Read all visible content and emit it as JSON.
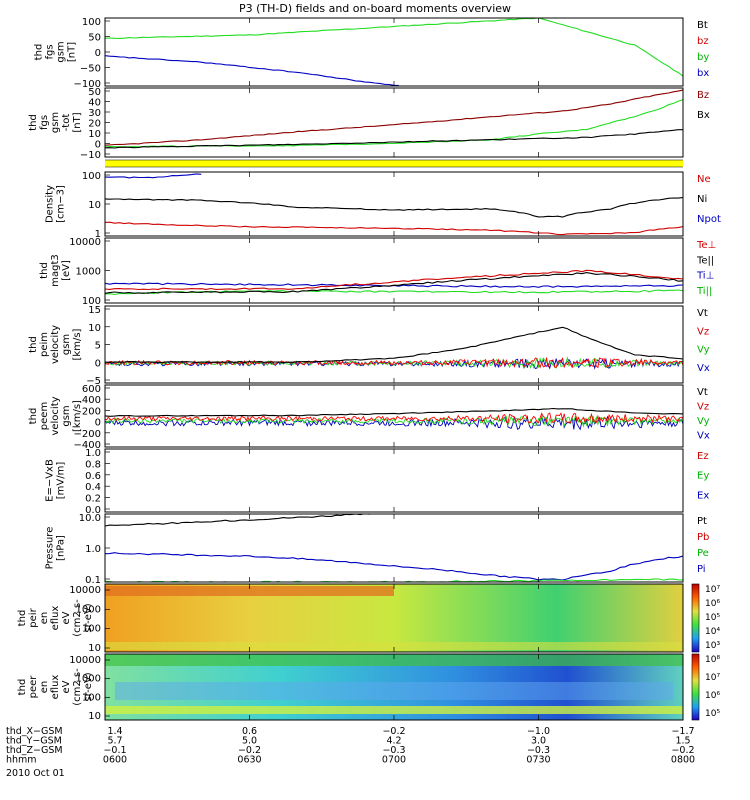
{
  "title": "P3 (TH-D) fields and on-board moments overview",
  "chart_data": [
    {
      "type": "line",
      "ylabel": [
        "thd",
        "fgs",
        "gsm",
        "[nT]"
      ],
      "ylim": [
        -100,
        100
      ],
      "y_ticks": [
        "100",
        "50",
        "0",
        "−50",
        "−100"
      ],
      "legend": [
        {
          "text": "Bt",
          "color": "#000000"
        },
        {
          "text": "bz",
          "color": "#d00000"
        },
        {
          "text": "by",
          "color": "#00b400"
        },
        {
          "text": "bx",
          "color": "#0000c0"
        }
      ],
      "series": [
        {
          "name": "by",
          "color": "#22dd22",
          "t": [
            0,
            30,
            60,
            90,
            110,
            120
          ],
          "values": [
            40,
            50,
            75,
            100,
            20,
            -70
          ]
        },
        {
          "name": "bx",
          "color": "#0000c0",
          "t": [
            0,
            20,
            40,
            55,
            62
          ],
          "values": [
            -12,
            -30,
            -60,
            -90,
            -100
          ]
        }
      ]
    },
    {
      "type": "line",
      "ylabel": [
        "thd",
        "fgs",
        "gsm",
        "-tot",
        "[nT]"
      ],
      "ylim": [
        -10,
        50
      ],
      "y_ticks": [
        "50",
        "40",
        "30",
        "20",
        "10",
        "0",
        "−10"
      ],
      "legend": [
        {
          "text": "Bz",
          "color": "#8b0000"
        },
        {
          "text": "Bx",
          "color": "#000000"
        }
      ],
      "series": [
        {
          "name": "Bz",
          "color": "#8b0000",
          "t": [
            0,
            20,
            40,
            60,
            80,
            95,
            105,
            112,
            120
          ],
          "values": [
            0,
            5,
            12,
            18,
            25,
            30,
            36,
            42,
            48
          ]
        },
        {
          "name": "green",
          "color": "#22dd22",
          "t": [
            0,
            40,
            60,
            80,
            90,
            100,
            105,
            110,
            115,
            120
          ],
          "values": [
            -1,
            0,
            2,
            5,
            10,
            14,
            20,
            25,
            32,
            40
          ]
        },
        {
          "name": "Bx",
          "color": "#000000",
          "t": [
            0,
            40,
            60,
            80,
            100,
            110,
            120
          ],
          "values": [
            -2,
            1,
            3,
            5,
            7,
            10,
            14
          ]
        }
      ]
    },
    {
      "type": "line",
      "ylabel": [
        "Density",
        "[cm−3]"
      ],
      "scale": "log",
      "ylim": [
        0.1,
        200
      ],
      "y_ticks": [
        "100",
        "10",
        "1"
      ],
      "legend": [
        {
          "text": "Ne",
          "color": "#d00000"
        },
        {
          "text": "Ni",
          "color": "#000000"
        },
        {
          "text": "Npot",
          "color": "#0000c0"
        }
      ],
      "series": [
        {
          "name": "Ni",
          "color": "#000000",
          "t": [
            0,
            20,
            40,
            60,
            80,
            90,
            95,
            105,
            120
          ],
          "values": [
            8,
            7,
            3,
            2.2,
            2.5,
            1,
            1,
            2.5,
            10
          ]
        },
        {
          "name": "Ne",
          "color": "#d00000",
          "t": [
            0,
            10,
            30,
            60,
            80,
            95,
            110,
            120
          ],
          "values": [
            0.5,
            0.4,
            0.3,
            0.25,
            0.2,
            0.12,
            0.15,
            0.3
          ]
        },
        {
          "name": "Npot",
          "color": "#0000c0",
          "t": [
            0,
            10,
            20
          ],
          "values": [
            110,
            100,
            160
          ]
        }
      ]
    },
    {
      "type": "line",
      "ylabel": [
        "thd",
        "magt3",
        "[eV]"
      ],
      "scale": "log",
      "ylim": [
        100,
        15000
      ],
      "y_ticks": [
        "10000",
        "1000",
        "100"
      ],
      "legend": [
        {
          "text": "Te⊥",
          "color": "#d00000"
        },
        {
          "text": "Te||",
          "color": "#000000"
        },
        {
          "text": "Ti⊥",
          "color": "#0000c0"
        },
        {
          "text": "Ti||",
          "color": "#00b400"
        }
      ],
      "series": [
        {
          "name": "Ti⊥",
          "color": "#0000c0",
          "t": [
            0,
            30,
            60,
            90,
            120
          ],
          "values": [
            450,
            420,
            380,
            350,
            380
          ]
        },
        {
          "name": "Ti||",
          "color": "#22dd22",
          "t": [
            0,
            30,
            60,
            90,
            120
          ],
          "values": [
            200,
            250,
            240,
            230,
            260
          ]
        },
        {
          "name": "Te⊥",
          "color": "#d00000",
          "t": [
            0,
            40,
            60,
            80,
            100,
            120
          ],
          "values": [
            300,
            300,
            500,
            800,
            1200,
            600
          ]
        },
        {
          "name": "Te||",
          "color": "#000000",
          "t": [
            0,
            40,
            60,
            80,
            100,
            120
          ],
          "values": [
            220,
            240,
            380,
            650,
            1000,
            550
          ]
        }
      ]
    },
    {
      "type": "line",
      "ylabel": [
        "thd",
        "peim",
        "velocity",
        "gsm",
        "[km/s]"
      ],
      "ylim": [
        -5,
        17
      ],
      "y_ticks": [
        "15",
        "10",
        "5",
        "0",
        "−5"
      ],
      "legend": [
        {
          "text": "Vt",
          "color": "#000000"
        },
        {
          "text": "Vz",
          "color": "#d00000"
        },
        {
          "text": "Vy",
          "color": "#00b400"
        },
        {
          "text": "Vx",
          "color": "#0000c0"
        }
      ],
      "series": [
        {
          "name": "Vx",
          "color": "#0000c0",
          "center": 0.5,
          "noise": 1
        },
        {
          "name": "Vy",
          "color": "#22dd22",
          "center": 0.7,
          "noise": 1
        },
        {
          "name": "Vz",
          "color": "#ff0000",
          "center": 0.8,
          "noise": 1
        },
        {
          "name": "Vt",
          "color": "#000000",
          "t": [
            0,
            40,
            60,
            75,
            85,
            95,
            100,
            110,
            120
          ],
          "values": [
            1,
            1,
            2,
            5,
            8,
            11,
            8,
            3,
            2
          ]
        }
      ]
    },
    {
      "type": "line",
      "ylabel": [
        "thd",
        "peem",
        "velocity",
        "gsm",
        "[km/s]"
      ],
      "ylim": [
        -400,
        600
      ],
      "y_ticks": [
        "600",
        "400",
        "200",
        "0",
        "−200",
        "−400"
      ],
      "legend": [
        {
          "text": "Vt",
          "color": "#000000"
        },
        {
          "text": "Vz",
          "color": "#d00000"
        },
        {
          "text": "Vy",
          "color": "#00b400"
        },
        {
          "text": "Vx",
          "color": "#0000c0"
        }
      ],
      "series": [
        {
          "name": "Vx",
          "color": "#0000c0",
          "center": -10,
          "noise": 80
        },
        {
          "name": "Vy",
          "color": "#22dd22",
          "center": 20,
          "noise": 60
        },
        {
          "name": "Vz",
          "color": "#ff0000",
          "center": 60,
          "noise": 60
        },
        {
          "name": "Vt",
          "color": "#000000",
          "t": [
            0,
            40,
            60,
            80,
            95,
            110,
            120
          ],
          "values": [
            100,
            110,
            140,
            180,
            220,
            150,
            130
          ]
        }
      ]
    },
    {
      "type": "line",
      "ylabel": [
        "E=−VxB",
        "[mV/m]"
      ],
      "ylim": [
        0,
        1
      ],
      "y_ticks": [
        "1.0",
        "0.8",
        "0.6",
        "0.4",
        "0.2",
        "0.0"
      ],
      "legend": [
        {
          "text": "Ez",
          "color": "#d00000"
        },
        {
          "text": "Ey",
          "color": "#00b400"
        },
        {
          "text": "Ex",
          "color": "#0000c0"
        }
      ],
      "series": []
    },
    {
      "type": "line",
      "ylabel": [
        "Pressure",
        "[nPa]"
      ],
      "scale": "log",
      "ylim": [
        0.04,
        12
      ],
      "y_ticks": [
        "10.0",
        "1.0",
        "0.1"
      ],
      "legend": [
        {
          "text": "Pt",
          "color": "#000000"
        },
        {
          "text": "Pb",
          "color": "#d00000"
        },
        {
          "text": "Pe",
          "color": "#00b400"
        },
        {
          "text": "Pi",
          "color": "#0000c0"
        }
      ],
      "series": [
        {
          "name": "Pt",
          "color": "#000000",
          "t": [
            0,
            20,
            40,
            55
          ],
          "values": [
            4.5,
            6,
            9,
            12
          ]
        },
        {
          "name": "Pi",
          "color": "#0000c0",
          "t": [
            0,
            30,
            60,
            80,
            90,
            95,
            105,
            120
          ],
          "values": [
            0.45,
            0.35,
            0.15,
            0.07,
            0.05,
            0.05,
            0.1,
            0.35
          ]
        },
        {
          "name": "Pe",
          "color": "#22dd22",
          "t": [
            0,
            60,
            90,
            120
          ],
          "values": [
            0.04,
            0.04,
            0.045,
            0.05
          ]
        }
      ]
    },
    {
      "type": "heatmap",
      "ylabel": [
        "thd",
        "peir",
        "en",
        "eflux",
        "eV",
        "(cm2 s-",
        "sr-eV)"
      ],
      "y_ticks": [
        "10000",
        "1000",
        "100",
        "10"
      ],
      "colorbar_ticks": [
        "10⁷",
        "10⁶",
        "10⁵",
        "10⁴",
        "10³"
      ]
    },
    {
      "type": "heatmap",
      "ylabel": [
        "thd",
        "peer",
        "en",
        "eflux",
        "eV",
        "(cm2 s-",
        "sr-eV)"
      ],
      "y_ticks": [
        "10000",
        "1000",
        "100",
        "10"
      ],
      "colorbar_ticks": [
        "10⁸",
        "10⁷",
        "10⁶",
        "10⁵"
      ]
    }
  ],
  "orbit_table": {
    "rows": [
      {
        "label": "thd_X−GSM",
        "values": [
          "1.4",
          "0.6",
          "−0.2",
          "−1.0",
          "−1.7"
        ]
      },
      {
        "label": "thd_Y−GSM",
        "values": [
          "5.7",
          "5.0",
          "4.2",
          "3.0",
          "1.5"
        ]
      },
      {
        "label": "thd_Z−GSM",
        "values": [
          "−0.1",
          "−0.2",
          "−0.3",
          "−0.3",
          "−0.2"
        ]
      },
      {
        "label": "hhmm",
        "values": [
          "0600",
          "0630",
          "0700",
          "0730",
          "0800"
        ]
      }
    ],
    "date": "2010 Oct 01"
  }
}
